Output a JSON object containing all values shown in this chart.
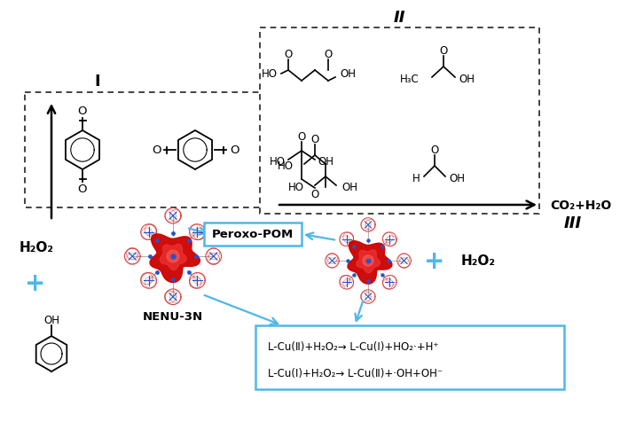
{
  "bg_color": "#ffffff",
  "label_I": "I",
  "label_II": "II",
  "label_III": "III",
  "reaction_text1": "L-Cu(Ⅱ)+H₂O₂→ L-Cu(Ⅰ)+HO₂·+H⁺",
  "reaction_text2": "L-Cu(Ⅰ)+H₂O₂→ L-Cu(Ⅱ)+·OH+OH⁻",
  "peroxo_label": "Peroxo-POM",
  "nenu_label": "NENU-3N",
  "h2o2_label1": "H₂O₂",
  "h2o2_label2": "H₂O₂",
  "plus_color": "#4db8e8",
  "arrow_color": "#4db8e8",
  "box_color": "#4db8e8",
  "co2_label": "CO₂+H₂O",
  "text_color": "#000000"
}
